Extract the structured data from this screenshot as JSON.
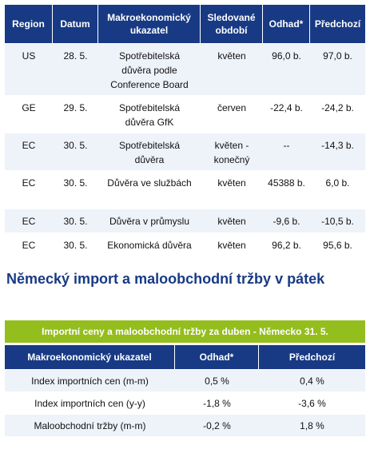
{
  "table1": {
    "headers": [
      "Region",
      "Datum",
      "Makroekonomický ukazatel",
      "Sledované období",
      "Odhad*",
      "Předchozí"
    ],
    "rows": [
      [
        "US",
        "28. 5.",
        "Spotřebitelská důvěra podle Conference Board",
        "květen",
        "96,0 b.",
        "97,0 b."
      ],
      [
        "GE",
        "29. 5.",
        "Spotřebitelská důvěra GfK",
        "červen",
        "-22,4 b.",
        "-24,2 b."
      ],
      [
        "EC",
        "30. 5.",
        "Spotřebitelská důvěra",
        "květen - konečný",
        "--",
        "-14,3 b."
      ],
      [
        "EC",
        "30. 5.",
        "Důvěra ve službách",
        "květen",
        "45388 b.",
        "6,0 b."
      ],
      [
        "EC",
        "30. 5.",
        "Důvěra v průmyslu",
        "květen",
        "-9,6 b.",
        "-10,5 b."
      ],
      [
        "EC",
        "30. 5.",
        "Ekonomická důvěra",
        "květen",
        "96,2 b.",
        "95,6 b."
      ]
    ]
  },
  "section_heading": "Německý import a maloobchodní tržby v pátek",
  "table2": {
    "title": "Importní ceny a maloobchodní tržby za duben - Německo 31. 5.",
    "headers": [
      "Makroekonomický ukazatel",
      "Odhad*",
      "Předchozí"
    ],
    "rows": [
      [
        "Index importních cen (m-m)",
        "0,5 %",
        "0,4 %"
      ],
      [
        "Index importních cen (y-y)",
        "-1,8 %",
        "-3,6 %"
      ],
      [
        "Maloobchodní tržby (m-m)",
        "-0,2 %",
        "1,8 %"
      ]
    ]
  },
  "colors": {
    "header_blue": "#183a84",
    "title_green": "#94bd1e",
    "row_tint": "#eef2f9"
  }
}
